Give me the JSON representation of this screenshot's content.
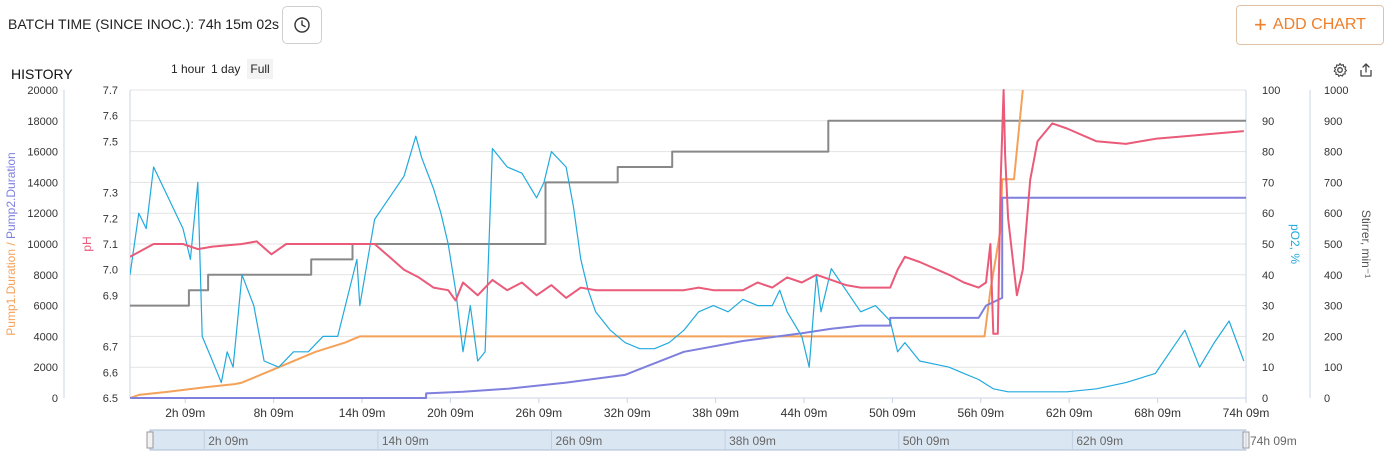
{
  "header": {
    "batch_time_label": "BATCH TIME (SINCE INOC.): 74h 15m 02s",
    "clock_icon": "clock-icon",
    "add_chart_label": "ADD CHART",
    "add_chart_icon": "plus-icon"
  },
  "history": {
    "title": "HISTORY",
    "range_buttons": [
      "1 hour",
      "1 day",
      "Full"
    ],
    "settings_icon": "gear-icon",
    "export_icon": "export-icon"
  },
  "colors": {
    "pump1": "#f4a25a",
    "pump2": "#7f7fdd",
    "ph": "#ea5a79",
    "po2": "#22aadd",
    "stirrer": "#888888",
    "accent": "#ef7f2a"
  },
  "chart_data": {
    "type": "line",
    "x_unit": "hours since inoculation",
    "x_range": [
      -1.6,
      74.15
    ],
    "x_ticks": [
      2.15,
      8.15,
      14.15,
      20.15,
      26.15,
      32.15,
      38.15,
      44.15,
      50.15,
      56.15,
      62.15,
      68.15,
      74.15
    ],
    "x_tick_labels": [
      "2h 09m",
      "8h 09m",
      "14h 09m",
      "20h 09m",
      "26h 09m",
      "32h 09m",
      "38h 09m",
      "44h 09m",
      "50h 09m",
      "56h 09m",
      "62h 09m",
      "68h 09m",
      "74h 09m"
    ],
    "navigator": {
      "tick_labels": [
        "2h 09m",
        "14h 09m",
        "26h 09m",
        "38h 09m",
        "50h 09m",
        "62h 09m",
        "74h 09m"
      ],
      "tick_values": [
        2.15,
        14.15,
        26.15,
        38.15,
        50.15,
        62.15,
        74.15
      ]
    },
    "axes": [
      {
        "id": "pump",
        "label_parts": [
          "Pump1.Duration",
          " / ",
          "Pump2.Duration"
        ],
        "range": [
          0,
          20000
        ],
        "ticks": [
          0,
          2000,
          4000,
          6000,
          8000,
          10000,
          12000,
          14000,
          16000,
          18000,
          20000
        ],
        "side": "left"
      },
      {
        "id": "ph",
        "label": "pH",
        "range": [
          6.5,
          7.7
        ],
        "ticks": [
          "6.5",
          "6.6",
          "6.7",
          "6.9",
          "7.0",
          "7.1",
          "7.2",
          "7.3",
          "7.5",
          "7.6",
          "7.7"
        ],
        "side": "left"
      },
      {
        "id": "po2",
        "label": "pO2, %",
        "range": [
          0,
          100
        ],
        "ticks": [
          0,
          10,
          20,
          30,
          40,
          50,
          60,
          70,
          80,
          90,
          100
        ],
        "side": "right"
      },
      {
        "id": "stirrer",
        "label": "Stirrer, min⁻¹",
        "range": [
          0,
          1000
        ],
        "ticks": [
          0,
          100,
          200,
          300,
          400,
          500,
          600,
          700,
          800,
          900,
          1000
        ],
        "side": "right"
      }
    ],
    "series": [
      {
        "name": "Stirrer",
        "axis": "stirrer",
        "color_key": "stirrer",
        "points": [
          [
            -1.6,
            300
          ],
          [
            2.4,
            300
          ],
          [
            2.4,
            350
          ],
          [
            3.7,
            350
          ],
          [
            3.7,
            400
          ],
          [
            10.7,
            400
          ],
          [
            10.7,
            450
          ],
          [
            13.5,
            450
          ],
          [
            13.5,
            500
          ],
          [
            26.6,
            500
          ],
          [
            26.6,
            700
          ],
          [
            31.5,
            700
          ],
          [
            31.5,
            750
          ],
          [
            35.2,
            750
          ],
          [
            35.2,
            800
          ],
          [
            45.8,
            800
          ],
          [
            45.8,
            900
          ],
          [
            74.15,
            900
          ]
        ]
      },
      {
        "name": "Pump1.Duration",
        "axis": "pump",
        "color_key": "pump1",
        "points": [
          [
            -1.6,
            0
          ],
          [
            -1,
            200
          ],
          [
            1,
            400
          ],
          [
            3.5,
            700
          ],
          [
            5.5,
            900
          ],
          [
            6,
            1000
          ],
          [
            8,
            1800
          ],
          [
            11,
            3000
          ],
          [
            13,
            3600
          ],
          [
            14,
            4000
          ],
          [
            56.4,
            4000
          ],
          [
            56.8,
            7000
          ],
          [
            57.5,
            11000
          ],
          [
            57.6,
            14200
          ],
          [
            58.4,
            14200
          ],
          [
            59,
            20000
          ]
        ]
      },
      {
        "name": "Pump2.Duration",
        "axis": "pump",
        "color_key": "pump2",
        "points": [
          [
            -1.6,
            0
          ],
          [
            18.5,
            0
          ],
          [
            18.5,
            300
          ],
          [
            21,
            400
          ],
          [
            24,
            600
          ],
          [
            28,
            1000
          ],
          [
            32,
            1500
          ],
          [
            36,
            3000
          ],
          [
            40,
            3700
          ],
          [
            44,
            4200
          ],
          [
            46,
            4500
          ],
          [
            48,
            4700
          ],
          [
            50,
            4700
          ],
          [
            50,
            5200
          ],
          [
            56,
            5200
          ],
          [
            56.5,
            6000
          ],
          [
            57.6,
            6500
          ],
          [
            57.6,
            13000
          ],
          [
            74.15,
            13000
          ]
        ]
      },
      {
        "name": "pH",
        "axis": "ph",
        "color_key": "ph",
        "points": [
          [
            -1.6,
            7.05
          ],
          [
            0,
            7.1
          ],
          [
            2,
            7.1
          ],
          [
            3,
            7.08
          ],
          [
            4,
            7.09
          ],
          [
            6,
            7.1
          ],
          [
            7,
            7.11
          ],
          [
            8,
            7.06
          ],
          [
            9,
            7.1
          ],
          [
            12,
            7.1
          ],
          [
            14,
            7.1
          ],
          [
            15,
            7.1
          ],
          [
            16,
            7.05
          ],
          [
            17,
            7.0
          ],
          [
            18,
            6.97
          ],
          [
            19,
            6.93
          ],
          [
            20,
            6.92
          ],
          [
            20.5,
            6.88
          ],
          [
            21,
            6.95
          ],
          [
            22,
            6.9
          ],
          [
            23,
            6.96
          ],
          [
            24,
            6.92
          ],
          [
            25,
            6.95
          ],
          [
            26,
            6.9
          ],
          [
            27,
            6.94
          ],
          [
            28,
            6.89
          ],
          [
            29,
            6.93
          ],
          [
            30,
            6.92
          ],
          [
            31,
            6.92
          ],
          [
            32,
            6.92
          ],
          [
            34,
            6.92
          ],
          [
            36,
            6.92
          ],
          [
            37,
            6.93
          ],
          [
            38,
            6.92
          ],
          [
            40,
            6.92
          ],
          [
            41,
            6.95
          ],
          [
            42,
            6.93
          ],
          [
            43,
            6.97
          ],
          [
            44,
            6.95
          ],
          [
            45,
            6.98
          ],
          [
            46,
            6.96
          ],
          [
            47,
            6.94
          ],
          [
            48,
            6.93
          ],
          [
            49,
            6.93
          ],
          [
            50,
            6.93
          ],
          [
            50.5,
            7.0
          ],
          [
            51,
            7.05
          ],
          [
            52,
            7.03
          ],
          [
            54,
            6.98
          ],
          [
            55,
            6.95
          ],
          [
            56,
            6.93
          ],
          [
            56.5,
            6.95
          ],
          [
            56.8,
            7.1
          ],
          [
            57,
            6.75
          ],
          [
            57.3,
            6.75
          ],
          [
            57.5,
            7.35
          ],
          [
            57.7,
            7.7
          ],
          [
            57.8,
            7.45
          ],
          [
            58,
            7.2
          ],
          [
            58.6,
            6.9
          ],
          [
            59,
            7.0
          ],
          [
            59.5,
            7.35
          ],
          [
            60,
            7.5
          ],
          [
            61,
            7.57
          ],
          [
            62,
            7.55
          ],
          [
            64,
            7.5
          ],
          [
            66,
            7.49
          ],
          [
            68,
            7.51
          ],
          [
            70,
            7.52
          ],
          [
            72,
            7.53
          ],
          [
            74,
            7.54
          ]
        ]
      },
      {
        "name": "pO2",
        "axis": "po2",
        "color_key": "po2",
        "points": [
          [
            -1.6,
            40
          ],
          [
            -1,
            60
          ],
          [
            -0.5,
            55
          ],
          [
            0,
            75
          ],
          [
            1,
            65
          ],
          [
            2,
            55
          ],
          [
            2.5,
            45
          ],
          [
            3,
            70
          ],
          [
            3.3,
            20
          ],
          [
            4,
            12
          ],
          [
            4.6,
            5
          ],
          [
            5,
            15
          ],
          [
            5.4,
            10
          ],
          [
            6,
            40
          ],
          [
            6.8,
            30
          ],
          [
            7.5,
            12
          ],
          [
            8.5,
            10
          ],
          [
            9.5,
            15
          ],
          [
            10.5,
            15
          ],
          [
            11.5,
            20
          ],
          [
            12.5,
            20
          ],
          [
            13.8,
            45
          ],
          [
            14,
            30
          ],
          [
            15,
            58
          ],
          [
            16,
            65
          ],
          [
            17,
            72
          ],
          [
            17.8,
            85
          ],
          [
            18.2,
            78
          ],
          [
            19,
            68
          ],
          [
            19.5,
            60
          ],
          [
            20,
            50
          ],
          [
            20.5,
            35
          ],
          [
            21,
            15
          ],
          [
            21.5,
            30
          ],
          [
            22,
            12
          ],
          [
            22.5,
            15
          ],
          [
            23,
            81
          ],
          [
            24,
            75
          ],
          [
            25,
            73
          ],
          [
            26,
            65
          ],
          [
            26.5,
            70
          ],
          [
            27,
            80
          ],
          [
            28,
            75
          ],
          [
            28.5,
            62
          ],
          [
            29,
            45
          ],
          [
            29.5,
            35
          ],
          [
            30,
            28
          ],
          [
            31,
            22
          ],
          [
            32,
            18
          ],
          [
            33,
            16
          ],
          [
            34,
            16
          ],
          [
            35,
            18
          ],
          [
            36,
            22
          ],
          [
            37,
            28
          ],
          [
            38,
            30
          ],
          [
            39,
            28
          ],
          [
            40,
            32
          ],
          [
            41,
            30
          ],
          [
            42,
            30
          ],
          [
            42.5,
            35
          ],
          [
            43,
            28
          ],
          [
            44,
            20
          ],
          [
            44.5,
            10
          ],
          [
            45,
            40
          ],
          [
            45.3,
            28
          ],
          [
            46,
            42
          ],
          [
            47,
            35
          ],
          [
            48,
            28
          ],
          [
            49,
            30
          ],
          [
            50,
            25
          ],
          [
            50.5,
            15
          ],
          [
            51,
            18
          ],
          [
            52,
            12
          ],
          [
            53,
            11
          ],
          [
            54,
            10
          ],
          [
            55,
            8
          ],
          [
            56,
            6
          ],
          [
            57,
            3
          ],
          [
            58,
            2
          ],
          [
            60,
            2
          ],
          [
            62,
            2
          ],
          [
            64,
            3
          ],
          [
            66,
            5
          ],
          [
            68,
            8
          ],
          [
            69,
            15
          ],
          [
            70,
            22
          ],
          [
            71,
            10
          ],
          [
            72,
            18
          ],
          [
            73,
            25
          ],
          [
            74,
            12
          ]
        ]
      }
    ]
  }
}
